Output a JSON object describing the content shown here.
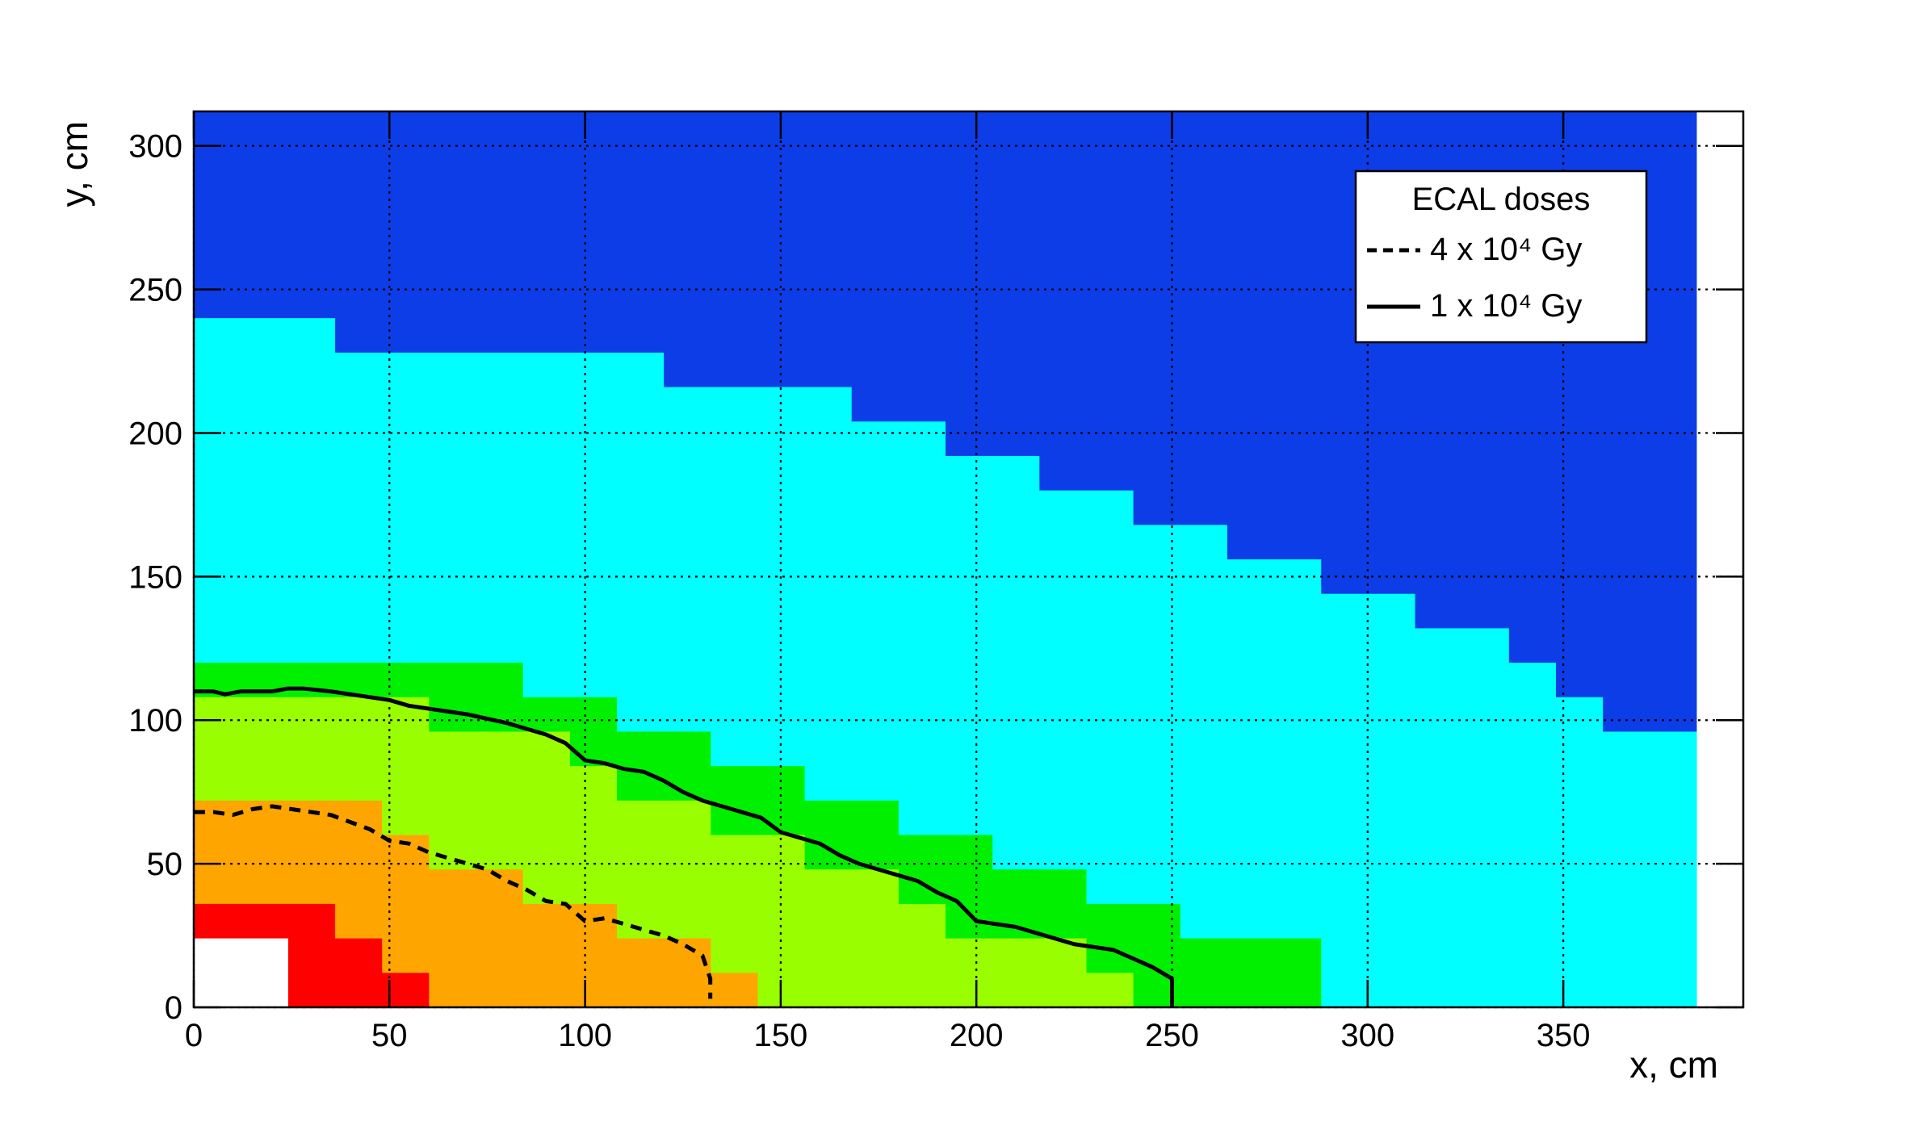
{
  "chart_data": {
    "type": "contour",
    "x_label": "x, cm",
    "y_label": "y, cm",
    "xlim": [
      0,
      396
    ],
    "ylim": [
      0,
      312
    ],
    "xticks": [
      0,
      50,
      100,
      150,
      200,
      250,
      300,
      350
    ],
    "yticks": [
      0,
      50,
      100,
      150,
      200,
      250,
      300
    ],
    "grid": true,
    "regions": [
      {
        "color": "#0d3de6",
        "edges": [
          0,
          384
        ],
        "tops": [
          312
        ]
      },
      {
        "color": "#00ffff",
        "edges": [
          0,
          36,
          120,
          168,
          192,
          216,
          240,
          264,
          288,
          312,
          336,
          348,
          360,
          384
        ],
        "tops": [
          240,
          228,
          216,
          204,
          192,
          180,
          168,
          156,
          144,
          132,
          120,
          108,
          96
        ]
      },
      {
        "color": "#00f000",
        "edges": [
          0,
          84,
          108,
          132,
          156,
          180,
          204,
          228,
          252,
          288
        ],
        "tops": [
          120,
          108,
          96,
          84,
          72,
          60,
          48,
          36,
          24
        ]
      },
      {
        "color": "#99ff00",
        "edges": [
          0,
          60,
          96,
          108,
          132,
          156,
          180,
          192,
          228,
          240
        ],
        "tops": [
          108,
          96,
          84,
          72,
          60,
          48,
          36,
          24,
          12
        ]
      },
      {
        "color": "#ffa500",
        "edges": [
          0,
          48,
          60,
          84,
          108,
          132,
          144
        ],
        "tops": [
          72,
          60,
          48,
          36,
          24,
          12
        ]
      },
      {
        "color": "#ff0000",
        "edges": [
          0,
          36,
          48,
          60
        ],
        "tops": [
          36,
          24,
          12
        ]
      },
      {
        "color": "#ffffff",
        "edges": [
          0,
          24
        ],
        "tops": [
          24
        ]
      }
    ],
    "legend_title": "ECAL doses",
    "legend_position": "top-right",
    "series": [
      {
        "name": "4 x 10⁴ Gy",
        "color": "#000000",
        "dash": true,
        "x": [
          0,
          5,
          10,
          15,
          20,
          25,
          35,
          45,
          50,
          55,
          60,
          70,
          75,
          80,
          85,
          90,
          95,
          100,
          105,
          110,
          115,
          120,
          125,
          130,
          132,
          132
        ],
        "y": [
          68,
          68,
          67,
          69,
          70,
          69,
          67,
          62,
          58,
          57,
          54,
          50,
          48,
          44,
          41,
          37,
          36,
          30,
          31,
          29,
          27,
          25,
          22,
          18,
          10,
          3
        ]
      },
      {
        "name": "1 x 10⁴ Gy",
        "color": "#000000",
        "dash": false,
        "x": [
          0,
          5,
          8,
          12,
          20,
          24,
          28,
          35,
          50,
          55,
          70,
          80,
          90,
          95,
          100,
          105,
          110,
          115,
          120,
          125,
          130,
          140,
          145,
          150,
          155,
          160,
          165,
          170,
          175,
          180,
          185,
          190,
          195,
          200,
          205,
          210,
          225,
          235,
          240,
          245,
          250,
          250
        ],
        "y": [
          110,
          110,
          109,
          110,
          110,
          111,
          111,
          110,
          107,
          105,
          102,
          99,
          95,
          92,
          86,
          85,
          83,
          82,
          79,
          75,
          72,
          68,
          66,
          61,
          59,
          57,
          53,
          50,
          48,
          46,
          44,
          40,
          37,
          30,
          29,
          28,
          22,
          20,
          17,
          14,
          10,
          0
        ]
      }
    ]
  }
}
